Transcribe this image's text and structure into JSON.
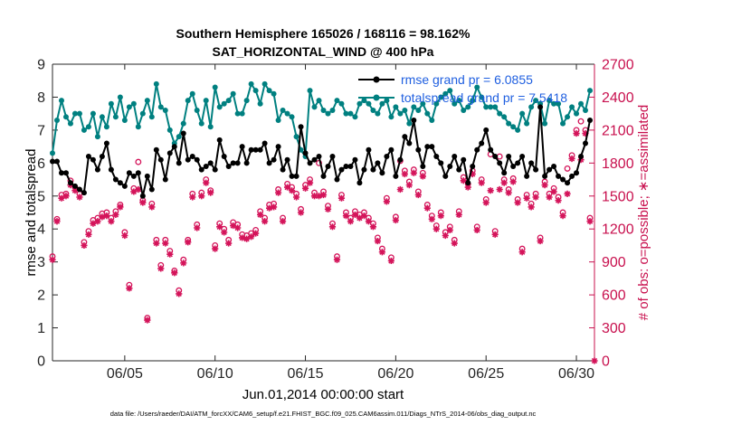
{
  "chart_data": {
    "type": "line",
    "title": "Southern Hemisphere 165026 / 168116 = 98.162%",
    "subtitle": "SAT_HORIZONTAL_WIND @ 400 hPa",
    "xlabel": "Jun.01,2014 00:00:00 start",
    "ylabel": "rmse and totalspread",
    "y2label": "# of obs: o=possible; ∗=assimilated",
    "footnote": "data file: /Users/raeder/DAI/ATM_forcXX/CAM6_setup/f.e21.FHIST_BGC.f09_025.CAM6assim.011/Diags_NTrS_2014-06/obs_diag_output.nc",
    "xlim": [
      1.0,
      31.0
    ],
    "ylim": [
      0,
      9
    ],
    "y2lim": [
      0,
      2700
    ],
    "x_ticks": [
      5,
      10,
      15,
      20,
      25,
      30
    ],
    "x_tick_labels": [
      "06/05",
      "06/10",
      "06/15",
      "06/20",
      "06/25",
      "06/30"
    ],
    "y_ticks": [
      0,
      1,
      2,
      3,
      4,
      5,
      6,
      7,
      8,
      9
    ],
    "y_tick_labels": [
      "0",
      "1",
      "2",
      "3",
      "4",
      "5",
      "6",
      "7",
      "8",
      "9"
    ],
    "y2_ticks": [
      0,
      300,
      600,
      900,
      1200,
      1500,
      1800,
      2100,
      2400,
      2700
    ],
    "y2_tick_labels": [
      "0",
      "300",
      "600",
      "900",
      "1200",
      "1500",
      "1800",
      "2100",
      "2400",
      "2700"
    ],
    "colors": {
      "rmse": "#000000",
      "spread": "#008080",
      "obs": "#d4145a",
      "axis_right": "#c8104e",
      "legend_text": "#1f5fe0"
    },
    "series": [
      {
        "name": "rmse grand pr = 6.0855",
        "axis": "left",
        "x": [
          1.0,
          1.25,
          1.5,
          1.75,
          2.0,
          2.25,
          2.5,
          2.75,
          3.0,
          3.25,
          3.5,
          3.75,
          4.0,
          4.25,
          4.5,
          4.75,
          5.0,
          5.25,
          5.5,
          5.75,
          6.0,
          6.25,
          6.5,
          6.75,
          7.0,
          7.25,
          7.5,
          7.75,
          8.0,
          8.25,
          8.5,
          8.75,
          9.0,
          9.25,
          9.5,
          9.75,
          10.0,
          10.25,
          10.5,
          10.75,
          11.0,
          11.25,
          11.5,
          11.75,
          12.0,
          12.25,
          12.5,
          12.75,
          13.0,
          13.25,
          13.5,
          13.75,
          14.0,
          14.25,
          14.5,
          14.75,
          15.0,
          15.25,
          15.5,
          15.75,
          16.0,
          16.25,
          16.5,
          16.75,
          17.0,
          17.25,
          17.5,
          17.75,
          18.0,
          18.25,
          18.5,
          18.75,
          19.0,
          19.25,
          19.5,
          19.75,
          20.0,
          20.25,
          20.5,
          20.75,
          21.0,
          21.25,
          21.5,
          21.75,
          22.0,
          22.25,
          22.5,
          22.75,
          23.0,
          23.25,
          23.5,
          23.75,
          24.0,
          24.25,
          24.5,
          24.75,
          25.0,
          25.25,
          25.5,
          25.75,
          26.0,
          26.25,
          26.5,
          26.75,
          27.0,
          27.25,
          27.5,
          27.75,
          28.0,
          28.25,
          28.5,
          28.75,
          29.0,
          29.25,
          29.5,
          29.75,
          30.0,
          30.25,
          30.5,
          30.75
        ],
        "values": [
          6.05,
          6.05,
          5.7,
          5.7,
          5.4,
          5.3,
          5.2,
          5.1,
          6.2,
          6.1,
          5.8,
          6.2,
          6.6,
          5.8,
          5.5,
          5.4,
          5.3,
          5.7,
          5.6,
          5.7,
          5.0,
          5.6,
          5.2,
          6.4,
          6.1,
          5.5,
          6.3,
          6.5,
          6.0,
          6.9,
          6.1,
          6.2,
          6.1,
          5.8,
          5.9,
          6.0,
          5.8,
          6.7,
          6.2,
          5.9,
          6.0,
          6.0,
          6.5,
          6.0,
          6.4,
          6.4,
          6.4,
          6.6,
          6.0,
          6.1,
          6.5,
          5.8,
          6.1,
          5.6,
          5.6,
          7.1,
          6.3,
          6.0,
          6.1,
          6.2,
          5.6,
          5.9,
          6.2,
          5.5,
          5.8,
          5.9,
          5.9,
          6.1,
          5.4,
          5.8,
          6.4,
          5.8,
          6.0,
          5.7,
          6.2,
          6.4,
          5.6,
          6.1,
          6.8,
          6.6,
          7.3,
          6.4,
          5.9,
          6.5,
          6.5,
          6.2,
          6.0,
          5.6,
          5.9,
          6.2,
          5.8,
          6.1,
          5.4,
          5.9,
          6.4,
          6.6,
          7.0,
          6.4,
          6.2,
          6.0,
          5.7,
          6.2,
          5.9,
          6.0,
          6.2,
          5.6,
          6.0,
          5.8,
          7.7,
          5.6,
          5.8,
          5.9,
          5.6,
          5.5,
          5.4,
          5.6,
          5.7,
          6.2,
          6.6,
          7.3
        ]
      },
      {
        "name": "totalspread grand pr = 7.5418",
        "axis": "left",
        "x": [
          1.0,
          1.25,
          1.5,
          1.75,
          2.0,
          2.25,
          2.5,
          2.75,
          3.0,
          3.25,
          3.5,
          3.75,
          4.0,
          4.25,
          4.5,
          4.75,
          5.0,
          5.25,
          5.5,
          5.75,
          6.0,
          6.25,
          6.5,
          6.75,
          7.0,
          7.25,
          7.5,
          7.75,
          8.0,
          8.25,
          8.5,
          8.75,
          9.0,
          9.25,
          9.5,
          9.75,
          10.0,
          10.25,
          10.5,
          10.75,
          11.0,
          11.25,
          11.5,
          11.75,
          12.0,
          12.25,
          12.5,
          12.75,
          13.0,
          13.25,
          13.5,
          13.75,
          14.0,
          14.25,
          14.5,
          14.75,
          15.0,
          15.25,
          15.5,
          15.75,
          16.0,
          16.25,
          16.5,
          16.75,
          17.0,
          17.25,
          17.5,
          17.75,
          18.0,
          18.25,
          18.5,
          18.75,
          19.0,
          19.25,
          19.5,
          19.75,
          20.0,
          20.25,
          20.5,
          20.75,
          21.0,
          21.25,
          21.5,
          21.75,
          22.0,
          22.25,
          22.5,
          22.75,
          23.0,
          23.25,
          23.5,
          23.75,
          24.0,
          24.25,
          24.5,
          24.75,
          25.0,
          25.25,
          25.5,
          25.75,
          26.0,
          26.25,
          26.5,
          26.75,
          27.0,
          27.25,
          27.5,
          27.75,
          28.0,
          28.25,
          28.5,
          28.75,
          29.0,
          29.25,
          29.5,
          29.75,
          30.0,
          30.25,
          30.5,
          30.75
        ],
        "values": [
          6.3,
          7.3,
          7.9,
          7.4,
          7.2,
          7.5,
          7.5,
          7.0,
          7.1,
          7.5,
          6.8,
          7.4,
          7.1,
          7.8,
          7.4,
          8.0,
          7.3,
          7.7,
          7.8,
          7.1,
          7.5,
          7.9,
          7.4,
          8.4,
          7.7,
          7.6,
          7.0,
          6.6,
          6.8,
          7.2,
          7.9,
          8.1,
          7.6,
          7.2,
          7.9,
          7.1,
          8.3,
          7.7,
          7.8,
          7.9,
          8.1,
          7.5,
          7.5,
          7.9,
          8.4,
          8.2,
          7.8,
          8.4,
          8.2,
          8.1,
          7.3,
          7.6,
          7.5,
          7.4,
          6.8,
          6.4,
          6.2,
          8.2,
          7.7,
          7.9,
          7.6,
          7.5,
          7.6,
          7.9,
          7.8,
          7.5,
          7.5,
          7.4,
          7.8,
          7.9,
          7.8,
          7.6,
          7.5,
          7.8,
          7.9,
          7.4,
          7.7,
          7.5,
          7.6,
          7.2,
          7.7,
          7.6,
          7.8,
          7.5,
          7.3,
          7.8,
          8.0,
          8.1,
          8.2,
          7.8,
          7.9,
          7.6,
          7.7,
          7.9,
          8.3,
          8.0,
          7.7,
          7.7,
          7.7,
          7.5,
          7.4,
          7.2,
          7.1,
          7.0,
          7.5,
          7.2,
          7.7,
          7.9,
          7.8,
          7.2,
          7.9,
          7.8,
          7.8,
          7.2,
          7.4,
          7.7,
          7.5,
          7.8,
          7.6,
          8.2
        ]
      },
      {
        "name": "possible obs",
        "axis": "right",
        "marker": "o",
        "x": [
          1.0,
          1.25,
          1.5,
          1.75,
          2.0,
          2.25,
          2.5,
          2.75,
          3.0,
          3.25,
          3.5,
          3.75,
          4.0,
          4.25,
          4.5,
          4.75,
          5.0,
          5.25,
          5.5,
          5.75,
          6.0,
          6.25,
          6.5,
          6.75,
          7.0,
          7.25,
          7.5,
          7.75,
          8.0,
          8.25,
          8.5,
          8.75,
          9.0,
          9.25,
          9.5,
          9.75,
          10.0,
          10.25,
          10.5,
          10.75,
          11.0,
          11.25,
          11.5,
          11.75,
          12.0,
          12.25,
          12.5,
          12.75,
          13.0,
          13.25,
          13.5,
          13.75,
          14.0,
          14.25,
          14.5,
          14.75,
          15.0,
          15.25,
          15.5,
          15.75,
          16.0,
          16.25,
          16.5,
          16.75,
          17.0,
          17.25,
          17.5,
          17.75,
          18.0,
          18.25,
          18.5,
          18.75,
          19.0,
          19.25,
          19.5,
          19.75,
          20.0,
          20.25,
          20.5,
          20.75,
          21.0,
          21.25,
          21.5,
          21.75,
          22.0,
          22.25,
          22.5,
          22.75,
          23.0,
          23.25,
          23.5,
          23.75,
          24.0,
          24.25,
          24.5,
          24.75,
          25.0,
          25.25,
          25.5,
          25.75,
          26.0,
          26.25,
          26.5,
          26.75,
          27.0,
          27.25,
          27.5,
          27.75,
          28.0,
          28.25,
          28.5,
          28.75,
          29.0,
          29.25,
          29.5,
          29.75,
          30.0,
          30.25,
          30.5,
          30.75
        ],
        "values": [
          950,
          1290,
          1510,
          1520,
          1640,
          1580,
          1520,
          1080,
          1180,
          1280,
          1300,
          1340,
          1350,
          1300,
          1360,
          1420,
          1170,
          690,
          1570,
          1810,
          1460,
          390,
          1430,
          1100,
          870,
          1100,
          1000,
          820,
          640,
          920,
          1100,
          1520,
          1240,
          1530,
          1650,
          1550,
          1050,
          1250,
          1200,
          1100,
          1260,
          1240,
          1150,
          1140,
          1160,
          1190,
          1360,
          1300,
          1420,
          1430,
          1560,
          1300,
          1610,
          1580,
          1520,
          1380,
          1600,
          1650,
          1530,
          1800,
          1540,
          1410,
          1250,
          950,
          1510,
          1350,
          1300,
          1360,
          1330,
          1350,
          1300,
          1250,
          1120,
          1020,
          1480,
          940,
          1310,
          1820,
          1730,
          1630,
          1740,
          1540,
          1710,
          1420,
          1320,
          1230,
          1350,
          1170,
          1220,
          1100,
          1360,
          1670,
          1610,
          1730,
          1220,
          1650,
          1470,
          1880,
          1180,
          1860,
          1650,
          1560,
          1660,
          1470,
          1020,
          1510,
          1430,
          1520,
          1120,
          1630,
          1520,
          1570,
          1490,
          1350,
          1750,
          1870,
          2100,
          2180,
          2100,
          1300
        ]
      },
      {
        "name": "assimilated obs",
        "axis": "right",
        "marker": "*",
        "x": [
          1.0,
          1.25,
          1.5,
          1.75,
          2.0,
          2.25,
          2.5,
          2.75,
          3.0,
          3.25,
          3.5,
          3.75,
          4.0,
          4.25,
          4.5,
          4.75,
          5.0,
          5.25,
          5.5,
          5.75,
          6.0,
          6.25,
          6.5,
          6.75,
          7.0,
          7.25,
          7.5,
          7.75,
          8.0,
          8.25,
          8.5,
          8.75,
          9.0,
          9.25,
          9.5,
          9.75,
          10.0,
          10.25,
          10.5,
          10.75,
          11.0,
          11.25,
          11.5,
          11.75,
          12.0,
          12.25,
          12.5,
          12.75,
          13.0,
          13.25,
          13.5,
          13.75,
          14.0,
          14.25,
          14.5,
          14.75,
          15.0,
          15.25,
          15.5,
          15.75,
          16.0,
          16.25,
          16.5,
          16.75,
          17.0,
          17.25,
          17.5,
          17.75,
          18.0,
          18.25,
          18.5,
          18.75,
          19.0,
          19.25,
          19.5,
          19.75,
          20.0,
          20.25,
          20.5,
          20.75,
          21.0,
          21.25,
          21.5,
          21.75,
          22.0,
          22.25,
          22.5,
          22.75,
          23.0,
          23.25,
          23.5,
          23.75,
          24.0,
          24.25,
          24.5,
          24.75,
          25.0,
          25.25,
          25.5,
          25.75,
          26.0,
          26.25,
          26.5,
          26.75,
          27.0,
          27.25,
          27.5,
          27.75,
          28.0,
          28.25,
          28.5,
          28.75,
          29.0,
          29.25,
          29.5,
          29.75,
          30.0,
          30.25,
          30.5,
          30.75,
          31.0
        ],
        "values": [
          920,
          1270,
          1480,
          1500,
          1600,
          1550,
          1490,
          1050,
          1150,
          1250,
          1270,
          1310,
          1320,
          1270,
          1330,
          1400,
          1140,
          660,
          1540,
          1560,
          1440,
          370,
          1400,
          1070,
          840,
          1070,
          970,
          800,
          610,
          890,
          1080,
          1490,
          1210,
          1500,
          1620,
          1530,
          1020,
          1220,
          1170,
          1070,
          1230,
          1210,
          1120,
          1110,
          1130,
          1160,
          1330,
          1270,
          1390,
          1400,
          1530,
          1270,
          1580,
          1550,
          1490,
          1350,
          1570,
          1620,
          1500,
          1500,
          1510,
          1380,
          1220,
          920,
          1480,
          1320,
          1270,
          1330,
          1300,
          1320,
          1270,
          1220,
          1090,
          990,
          1450,
          910,
          1280,
          1560,
          1700,
          1600,
          1710,
          1510,
          1680,
          1390,
          1290,
          1200,
          1320,
          1140,
          1190,
          1070,
          1330,
          1640,
          1580,
          1700,
          1190,
          1620,
          1440,
          1550,
          1150,
          1560,
          1620,
          1530,
          1630,
          1440,
          990,
          1480,
          1400,
          1490,
          1090,
          1600,
          1490,
          1540,
          1460,
          1320,
          1520,
          1840,
          2070,
          1830,
          2070,
          1270,
          0
        ]
      }
    ]
  }
}
